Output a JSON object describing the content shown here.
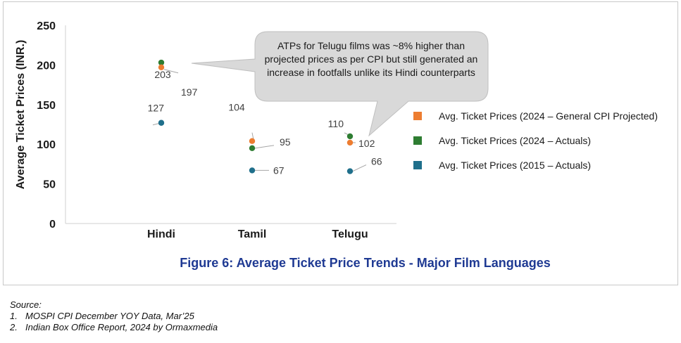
{
  "chart_data": {
    "type": "scatter",
    "title": "Figure 6: Average Ticket Price Trends - Major Film Languages",
    "ylabel": "Average Ticket Prices (INR.)",
    "xlabel": "",
    "categories": [
      "Hindi",
      "Tamil",
      "Telugu"
    ],
    "ylim": [
      0,
      250
    ],
    "yticks": [
      0,
      50,
      100,
      150,
      200,
      250
    ],
    "grid": false,
    "legend_position": "right",
    "series": [
      {
        "name": "Avg. Ticket Prices (2024 – General CPI Projected)",
        "color": "#ed7d31",
        "values": [
          197,
          104,
          102
        ],
        "labels": [
          "197",
          "104",
          "102"
        ]
      },
      {
        "name": "Avg. Ticket Prices (2024 – Actuals)",
        "color": "#2e7d32",
        "values": [
          203,
          95,
          110
        ],
        "labels": [
          "203",
          "95",
          "110"
        ]
      },
      {
        "name": "Avg. Ticket Prices (2015 – Actuals)",
        "color": "#1f6f8b",
        "values": [
          127,
          67,
          66
        ],
        "labels": [
          "127",
          "67",
          "66"
        ]
      }
    ],
    "annotation": "ATPs for Telugu films was ~8% higher than projected prices as per CPI but still generated an increase in footfalls unlike its Hindi counterparts"
  },
  "source": {
    "heading": "Source:",
    "items": [
      {
        "num": "1.",
        "text": "MOSPI CPI December YOY Data, Mar’25"
      },
      {
        "num": "2.",
        "text": "Indian Box Office Report, 2024 by Ormaxmedia"
      }
    ]
  }
}
